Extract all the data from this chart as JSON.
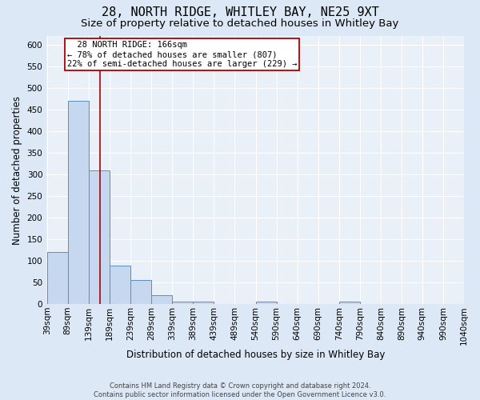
{
  "title": "28, NORTH RIDGE, WHITLEY BAY, NE25 9XT",
  "subtitle": "Size of property relative to detached houses in Whitley Bay",
  "xlabel": "Distribution of detached houses by size in Whitley Bay",
  "ylabel": "Number of detached properties",
  "footer_line1": "Contains HM Land Registry data © Crown copyright and database right 2024.",
  "footer_line2": "Contains public sector information licensed under the Open Government Licence v3.0.",
  "bar_edges": [
    39,
    89,
    139,
    189,
    239,
    289,
    339,
    389,
    439,
    489,
    540,
    590,
    640,
    690,
    740,
    790,
    840,
    890,
    940,
    990,
    1040
  ],
  "bar_heights": [
    120,
    470,
    310,
    90,
    55,
    20,
    5,
    5,
    0,
    0,
    5,
    0,
    0,
    0,
    5,
    0,
    0,
    0,
    0,
    0
  ],
  "bar_color": "#c5d8ef",
  "bar_edge_color": "#5b8ec4",
  "red_line_x": 166,
  "red_line_color": "#aa0000",
  "annotation_text_line1": "  28 NORTH RIDGE: 166sqm",
  "annotation_text_line2": "← 78% of detached houses are smaller (807)",
  "annotation_text_line3": "22% of semi-detached houses are larger (229) →",
  "annotation_box_color": "#aa0000",
  "ylim": [
    0,
    620
  ],
  "yticks": [
    0,
    50,
    100,
    150,
    200,
    250,
    300,
    350,
    400,
    450,
    500,
    550,
    600
  ],
  "bg_color": "#dce8f5",
  "plot_bg_color": "#eaf0f8",
  "title_fontsize": 11,
  "subtitle_fontsize": 9.5,
  "label_fontsize": 8.5,
  "tick_fontsize": 7.5,
  "annotation_fontsize": 7.5,
  "footer_fontsize": 6
}
